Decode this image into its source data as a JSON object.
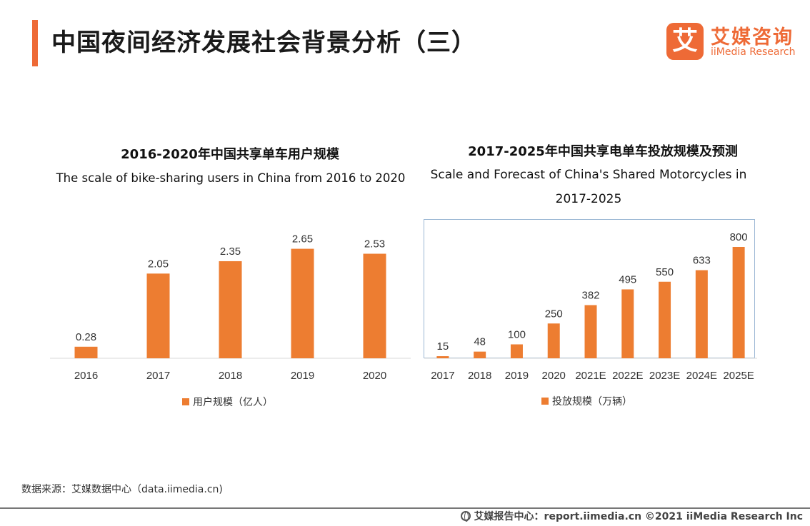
{
  "header": {
    "title": "中国夜间经济发展社会背景分析（三）"
  },
  "logo": {
    "mark": "艾",
    "cn": "艾媒咨询",
    "en": "iiMedia Research",
    "color": "#ee6a36"
  },
  "chart_data": [
    {
      "type": "bar",
      "title": "2016-2020年中国共享单车用户规模",
      "subtitle": "The scale of bike-sharing users in China from 2016 to 2020",
      "categories": [
        "2016",
        "2017",
        "2018",
        "2019",
        "2020"
      ],
      "series": [
        {
          "name": "用户规模（亿人）",
          "values": [
            0.28,
            2.05,
            2.35,
            2.65,
            2.53
          ]
        }
      ],
      "value_labels": [
        "0.28",
        "2.05",
        "2.35",
        "2.65",
        "2.53"
      ],
      "ylim": [
        0,
        2.85
      ],
      "legend": "bottom",
      "bar_color": "#ed7d31",
      "axis_color": "#d9d9d9"
    },
    {
      "type": "bar",
      "title": "2017-2025年中国共享电单车投放规模及预测",
      "subtitle": "Scale and Forecast of China's Shared Motorcycles in 2017-2025",
      "categories": [
        "2017",
        "2018",
        "2019",
        "2020",
        "2021E",
        "2022E",
        "2023E",
        "2024E",
        "2025E"
      ],
      "series": [
        {
          "name": "投放规模（万辆）",
          "values": [
            15,
            48,
            100,
            250,
            382,
            495,
            550,
            633,
            800
          ]
        }
      ],
      "value_labels": [
        "15",
        "48",
        "100",
        "250",
        "382",
        "495",
        "550",
        "633",
        "800"
      ],
      "ylim": [
        0,
        800
      ],
      "legend": "bottom",
      "bar_color": "#ed7d31",
      "axis_color": "#d9d9d9"
    }
  ],
  "footer": {
    "source": "数据来源：艾媒数据中心（data.iimedia.cn)",
    "copyright": "艾媒报告中心：report.iimedia.cn  ©2021  iiMedia Research  Inc"
  }
}
